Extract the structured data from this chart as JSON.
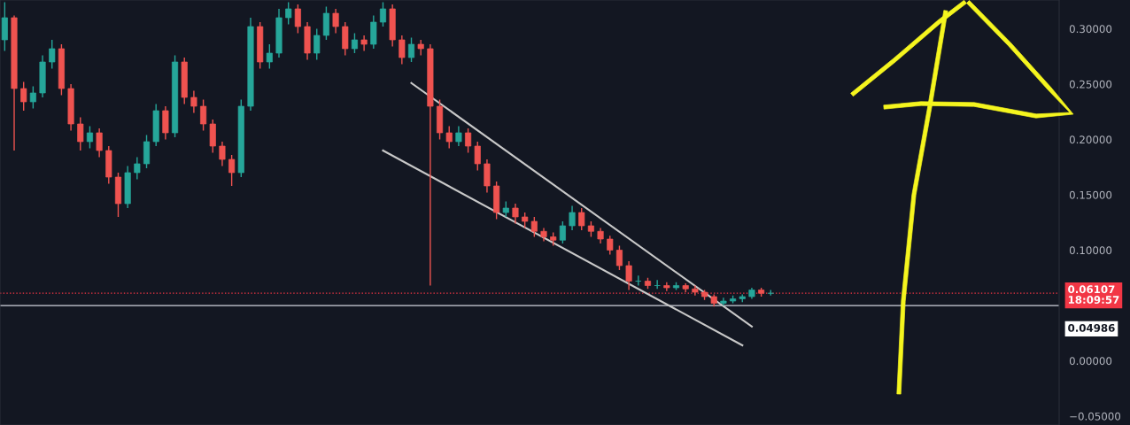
{
  "chart_data": {
    "type": "candlestick",
    "categories": [
      null,
      null,
      null,
      null,
      null,
      null,
      null,
      null,
      null,
      null,
      null,
      null,
      null,
      null,
      null,
      null,
      null,
      null,
      null,
      null,
      null,
      null,
      null,
      null,
      null,
      null,
      null,
      null,
      null,
      null,
      null,
      null,
      null,
      null,
      null,
      null,
      null,
      null,
      null,
      null,
      null,
      null,
      null,
      null,
      null,
      null,
      null,
      null,
      null,
      null,
      null,
      null,
      null,
      null,
      null,
      null,
      null,
      null,
      null,
      null,
      null,
      null,
      null,
      null,
      null,
      null,
      null,
      null,
      null,
      null,
      null,
      null,
      null,
      null,
      null,
      null,
      null,
      null,
      null,
      null,
      null,
      null,
      null,
      null,
      null,
      null,
      null,
      null,
      null,
      null,
      null,
      null,
      null,
      null,
      null,
      null,
      null,
      null,
      null,
      null,
      null,
      null,
      null,
      null,
      null,
      null,
      null,
      null,
      null,
      null,
      null,
      null
    ],
    "ohlc": [
      [
        0.29,
        0.324,
        0.28,
        0.31
      ],
      [
        0.31,
        0.312,
        0.19,
        0.246
      ],
      [
        0.246,
        0.252,
        0.226,
        0.234
      ],
      [
        0.234,
        0.248,
        0.228,
        0.242
      ],
      [
        0.242,
        0.276,
        0.238,
        0.27
      ],
      [
        0.27,
        0.29,
        0.264,
        0.282
      ],
      [
        0.282,
        0.286,
        0.24,
        0.246
      ],
      [
        0.246,
        0.25,
        0.208,
        0.214
      ],
      [
        0.214,
        0.22,
        0.19,
        0.198
      ],
      [
        0.198,
        0.212,
        0.192,
        0.206
      ],
      [
        0.206,
        0.21,
        0.184,
        0.19
      ],
      [
        0.19,
        0.194,
        0.16,
        0.166
      ],
      [
        0.166,
        0.17,
        0.13,
        0.142
      ],
      [
        0.142,
        0.176,
        0.138,
        0.17
      ],
      [
        0.17,
        0.184,
        0.164,
        0.178
      ],
      [
        0.178,
        0.204,
        0.174,
        0.198
      ],
      [
        0.198,
        0.232,
        0.194,
        0.226
      ],
      [
        0.226,
        0.23,
        0.2,
        0.206
      ],
      [
        0.206,
        0.276,
        0.202,
        0.27
      ],
      [
        0.27,
        0.274,
        0.232,
        0.238
      ],
      [
        0.238,
        0.244,
        0.224,
        0.23
      ],
      [
        0.23,
        0.236,
        0.208,
        0.214
      ],
      [
        0.214,
        0.218,
        0.188,
        0.194
      ],
      [
        0.194,
        0.198,
        0.176,
        0.182
      ],
      [
        0.182,
        0.186,
        0.158,
        0.17
      ],
      [
        0.17,
        0.236,
        0.166,
        0.23
      ],
      [
        0.23,
        0.31,
        0.226,
        0.302
      ],
      [
        0.302,
        0.306,
        0.264,
        0.27
      ],
      [
        0.27,
        0.286,
        0.264,
        0.278
      ],
      [
        0.278,
        0.318,
        0.274,
        0.31
      ],
      [
        0.31,
        0.324,
        0.304,
        0.318
      ],
      [
        0.318,
        0.322,
        0.296,
        0.302
      ],
      [
        0.302,
        0.306,
        0.272,
        0.278
      ],
      [
        0.278,
        0.3,
        0.272,
        0.294
      ],
      [
        0.294,
        0.32,
        0.29,
        0.314
      ],
      [
        0.314,
        0.318,
        0.296,
        0.302
      ],
      [
        0.302,
        0.306,
        0.276,
        0.282
      ],
      [
        0.282,
        0.296,
        0.278,
        0.29
      ],
      [
        0.29,
        0.294,
        0.28,
        0.286
      ],
      [
        0.286,
        0.312,
        0.282,
        0.306
      ],
      [
        0.306,
        0.324,
        0.302,
        0.318
      ],
      [
        0.318,
        0.322,
        0.284,
        0.29
      ],
      [
        0.29,
        0.294,
        0.268,
        0.274
      ],
      [
        0.274,
        0.292,
        0.27,
        0.286
      ],
      [
        0.286,
        0.29,
        0.276,
        0.282
      ],
      [
        0.282,
        0.286,
        0.068,
        0.23
      ],
      [
        0.23,
        0.236,
        0.2,
        0.206
      ],
      [
        0.206,
        0.212,
        0.192,
        0.198
      ],
      [
        0.198,
        0.212,
        0.194,
        0.206
      ],
      [
        0.206,
        0.21,
        0.188,
        0.194
      ],
      [
        0.194,
        0.198,
        0.172,
        0.178
      ],
      [
        0.178,
        0.182,
        0.152,
        0.158
      ],
      [
        0.158,
        0.162,
        0.128,
        0.134
      ],
      [
        0.134,
        0.144,
        0.13,
        0.138
      ],
      [
        0.138,
        0.142,
        0.124,
        0.13
      ],
      [
        0.13,
        0.134,
        0.12,
        0.126
      ],
      [
        0.126,
        0.13,
        0.112,
        0.117
      ],
      [
        0.117,
        0.12,
        0.108,
        0.112
      ],
      [
        0.112,
        0.116,
        0.104,
        0.109
      ],
      [
        0.109,
        0.126,
        0.106,
        0.122
      ],
      [
        0.122,
        0.14,
        0.118,
        0.134
      ],
      [
        0.134,
        0.138,
        0.118,
        0.122
      ],
      [
        0.122,
        0.126,
        0.112,
        0.117
      ],
      [
        0.117,
        0.12,
        0.106,
        0.11
      ],
      [
        0.11,
        0.113,
        0.096,
        0.1
      ],
      [
        0.1,
        0.104,
        0.082,
        0.086
      ],
      [
        0.086,
        0.09,
        0.064,
        0.072
      ],
      [
        0.072,
        0.077,
        0.068,
        0.072
      ],
      [
        0.072,
        0.075,
        0.065,
        0.068
      ],
      [
        0.068,
        0.073,
        0.065,
        0.068
      ],
      [
        0.068,
        0.071,
        0.063,
        0.066
      ],
      [
        0.066,
        0.071,
        0.064,
        0.068
      ],
      [
        0.068,
        0.07,
        0.062,
        0.065
      ],
      [
        0.065,
        0.068,
        0.059,
        0.062
      ],
      [
        0.062,
        0.064,
        0.055,
        0.058
      ],
      [
        0.058,
        0.06,
        0.049,
        0.052
      ],
      [
        0.052,
        0.057,
        0.05,
        0.054
      ],
      [
        0.054,
        0.059,
        0.052,
        0.056
      ],
      [
        0.056,
        0.06,
        0.053,
        0.058
      ],
      [
        0.058,
        0.066,
        0.056,
        0.064
      ],
      [
        0.064,
        0.066,
        0.058,
        0.061
      ],
      [
        0.061,
        0.064,
        0.059,
        0.061
      ],
      null,
      null,
      null,
      null,
      null,
      null,
      null,
      null,
      null,
      null,
      null,
      null,
      null,
      null,
      null,
      null,
      null,
      null,
      null,
      null,
      null,
      null,
      null,
      null,
      null,
      null,
      null,
      null,
      null,
      null
    ],
    "series": [
      {
        "type": "line",
        "color": "#c8c8c8",
        "values": [
          null,
          null,
          null,
          null,
          null,
          null,
          null,
          null,
          null,
          null,
          null,
          null,
          null,
          null,
          null,
          null,
          null,
          null,
          null,
          null,
          null,
          null,
          null,
          null,
          null,
          null,
          null,
          null,
          null,
          null,
          null,
          null,
          null,
          null,
          null,
          null,
          null,
          null,
          null,
          null,
          null,
          null,
          null,
          0.251,
          null,
          null,
          null,
          null,
          null,
          null,
          null,
          null,
          null,
          null,
          null,
          null,
          null,
          null,
          null,
          null,
          null,
          null,
          null,
          null,
          null,
          null,
          null,
          null,
          null,
          null,
          null,
          null,
          null,
          null,
          null,
          null,
          null,
          null,
          null,
          0.031,
          null,
          null,
          null,
          null,
          null,
          null,
          null,
          null,
          null,
          null,
          null,
          null,
          null,
          null,
          null,
          null,
          null,
          null,
          null,
          null,
          null,
          null,
          null,
          null,
          null,
          null,
          null,
          null,
          null,
          null,
          null,
          null
        ]
      },
      {
        "type": "line",
        "color": "#c8c8c8",
        "values": [
          null,
          null,
          null,
          null,
          null,
          null,
          null,
          null,
          null,
          null,
          null,
          null,
          null,
          null,
          null,
          null,
          null,
          null,
          null,
          null,
          null,
          null,
          null,
          null,
          null,
          null,
          null,
          null,
          null,
          null,
          null,
          null,
          null,
          null,
          null,
          null,
          null,
          null,
          null,
          null,
          0.19,
          null,
          null,
          null,
          null,
          null,
          null,
          null,
          null,
          null,
          null,
          null,
          null,
          null,
          null,
          null,
          null,
          null,
          null,
          null,
          null,
          null,
          null,
          null,
          null,
          null,
          null,
          null,
          null,
          null,
          null,
          null,
          null,
          null,
          null,
          null,
          null,
          null,
          0.014,
          null,
          null,
          null,
          null,
          null,
          null,
          null,
          null,
          null,
          null,
          null,
          null,
          null,
          null,
          null,
          null,
          null,
          null,
          null,
          null,
          null,
          null,
          null,
          null,
          null,
          null,
          null,
          null,
          null,
          null,
          null,
          null,
          null
        ]
      }
    ],
    "ylim": [
      -0.058,
      0.326
    ],
    "yticks": [
      {
        "value": -0.05,
        "label": "−0.05000"
      },
      {
        "value": 0,
        "label": "0.00000"
      },
      {
        "value": 0.1,
        "label": "0.10000"
      },
      {
        "value": 0.15,
        "label": "0.15000"
      },
      {
        "value": 0.2,
        "label": "0.20000"
      },
      {
        "value": 0.25,
        "label": "0.25000"
      },
      {
        "value": 0.3,
        "label": "0.30000"
      }
    ],
    "ref_lines": [
      {
        "axis": "y",
        "value": 0.06107,
        "label": "0.06107",
        "color": "#f23645",
        "line_style": "dotted"
      },
      {
        "axis": "y",
        "value": 0.04986,
        "label": "0.04986",
        "color": "#d1d4dc",
        "line_style": "solid"
      }
    ],
    "annotations": [
      "18:09:57"
    ],
    "tick_labels": "y",
    "grid": false,
    "legend": false
  }
}
